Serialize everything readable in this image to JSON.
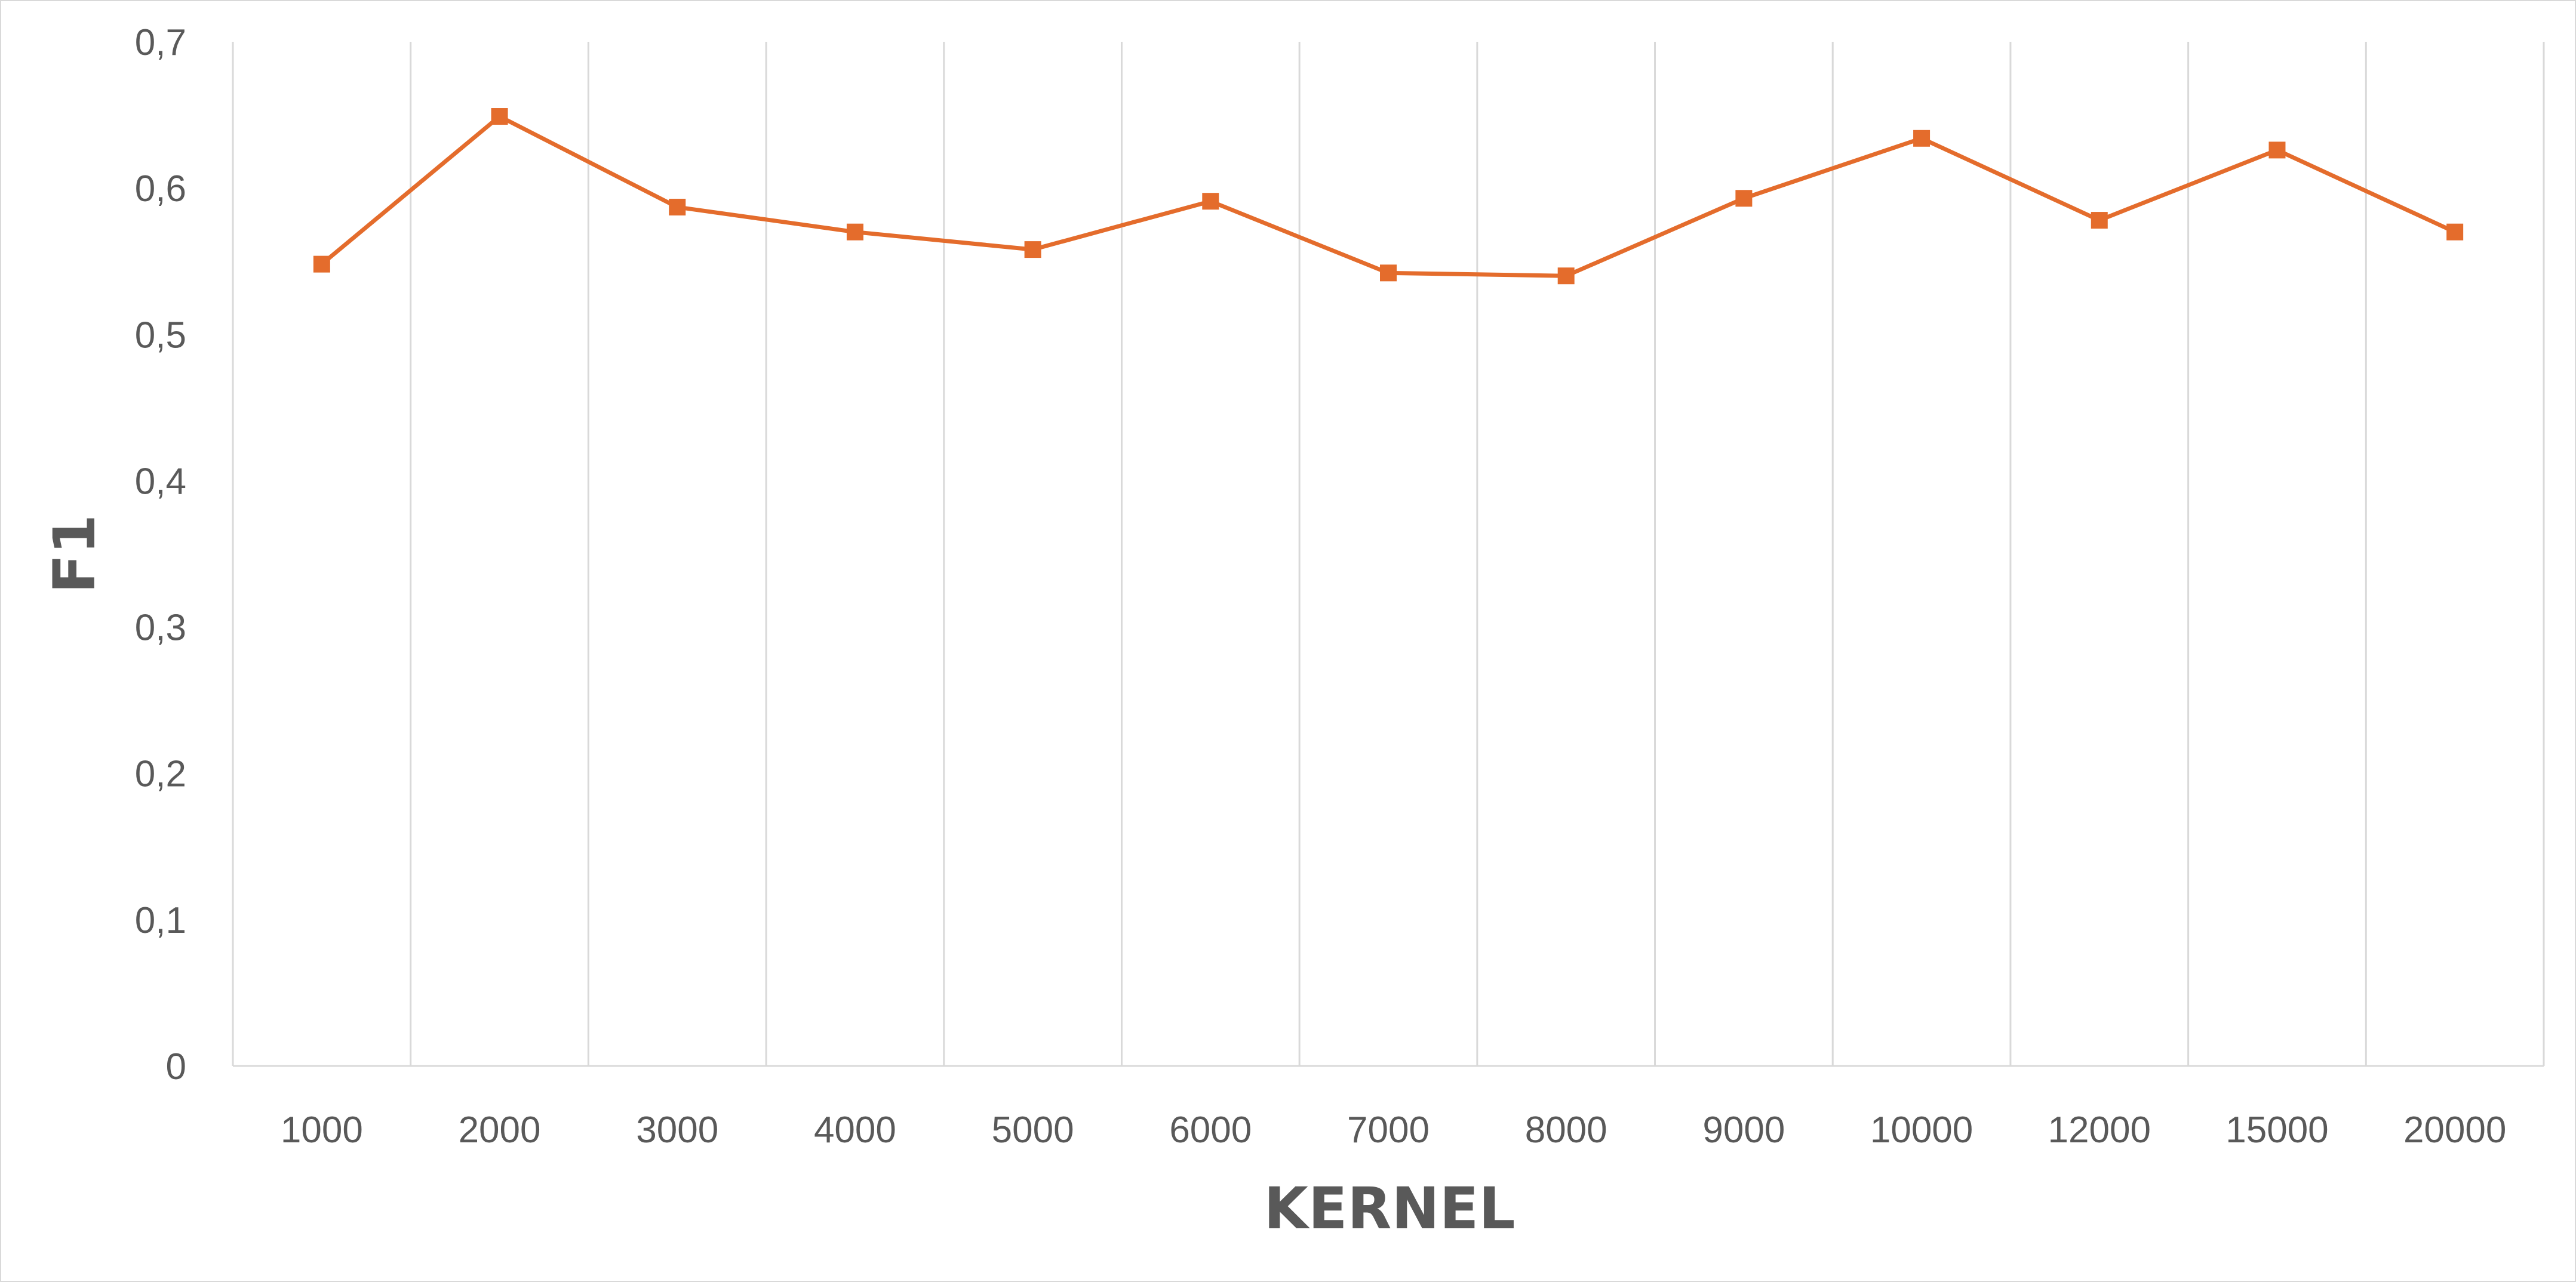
{
  "chart_data": {
    "type": "line",
    "categories": [
      "1000",
      "2000",
      "3000",
      "4000",
      "5000",
      "6000",
      "7000",
      "8000",
      "9000",
      "10000",
      "12000",
      "15000",
      "20000"
    ],
    "series": [
      {
        "values": [
          0.548,
          0.649,
          0.587,
          0.57,
          0.558,
          0.591,
          0.542,
          0.54,
          0.593,
          0.634,
          0.578,
          0.626,
          0.57
        ]
      }
    ],
    "xlabel": "KERNEL",
    "ylabel": "F1",
    "ylim": [
      0,
      0.7
    ],
    "yticks": [
      "0",
      "0,1",
      "0,2",
      "0,3",
      "0,4",
      "0,5",
      "0,6",
      "0,7"
    ],
    "grid": "vertical",
    "legend": "none",
    "line_color": "#E46C2C",
    "gridline_color": "#d9d9d9",
    "text_color": "#595959"
  }
}
